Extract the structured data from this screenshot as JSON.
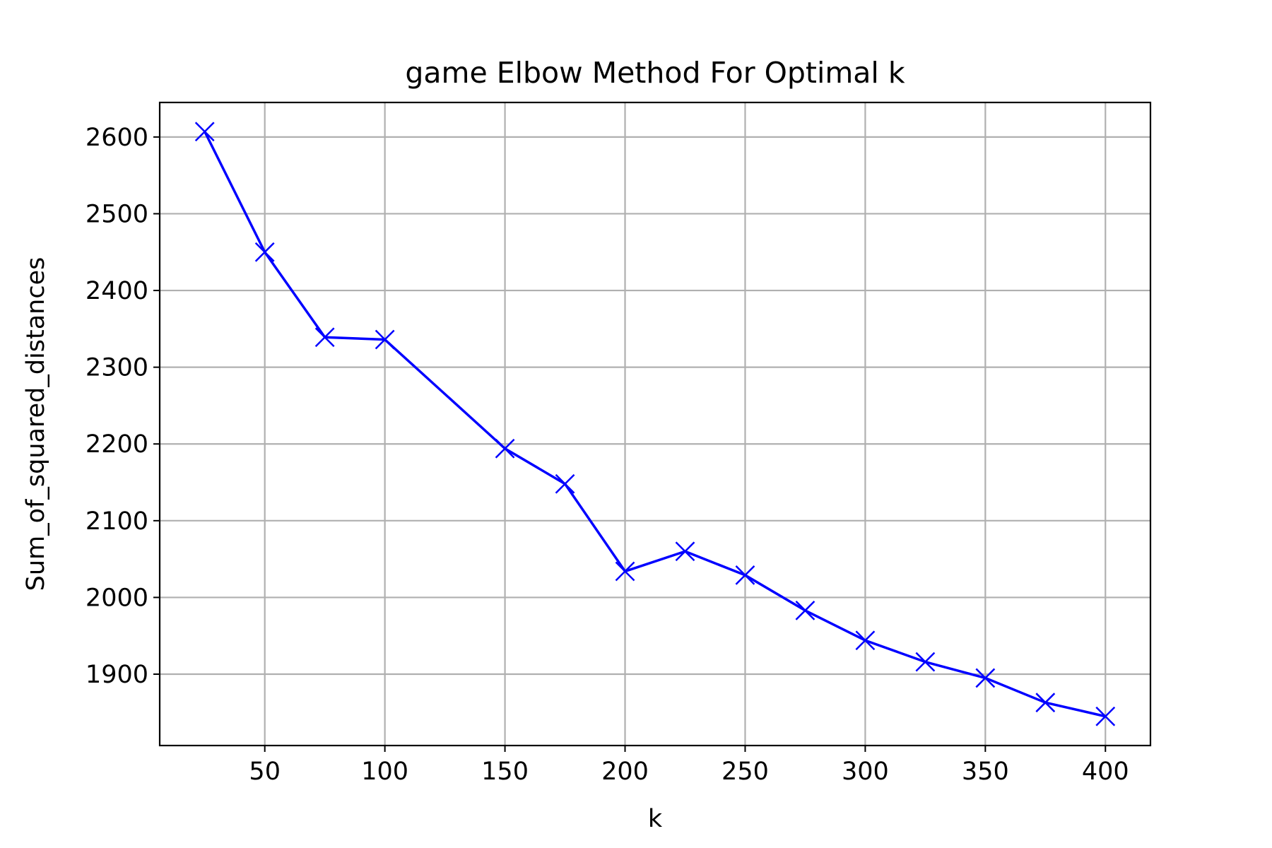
{
  "chart_data": {
    "type": "line",
    "title": "game Elbow Method For Optimal k",
    "xlabel": "k",
    "ylabel": "Sum_of_squared_distances",
    "x": [
      25,
      50,
      75,
      100,
      150,
      175,
      200,
      225,
      250,
      275,
      300,
      325,
      350,
      375,
      400
    ],
    "series": [
      {
        "values": [
          2607,
          2450,
          2339,
          2336,
          2194,
          2148,
          2034,
          2060,
          2029,
          1983,
          1944,
          1916,
          1895,
          1863,
          1845
        ],
        "color": "#0000ff",
        "marker": "x"
      }
    ],
    "xlim": [
      6.25,
      418.75
    ],
    "ylim": [
      1807,
      2645
    ],
    "xticks": [
      50,
      100,
      150,
      200,
      250,
      300,
      350,
      400
    ],
    "yticks": [
      1900,
      2000,
      2100,
      2200,
      2300,
      2400,
      2500,
      2600
    ],
    "grid": true
  }
}
